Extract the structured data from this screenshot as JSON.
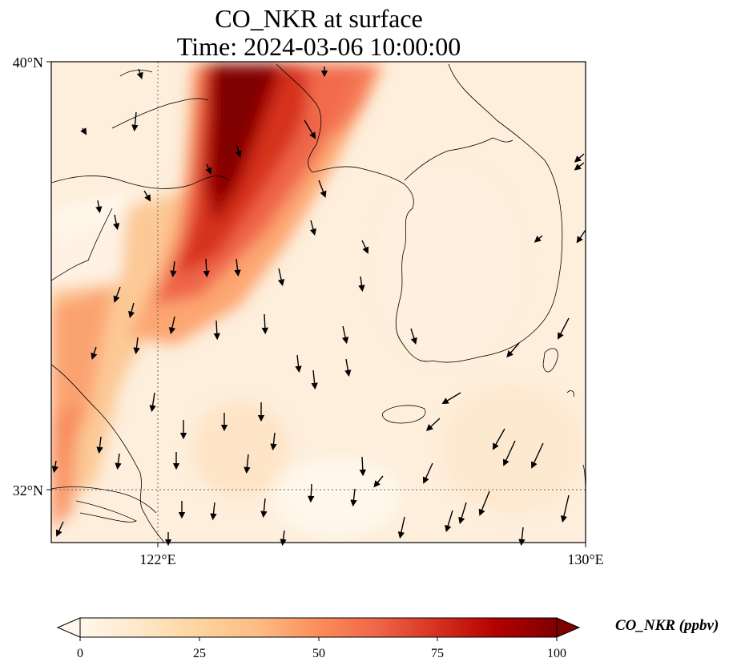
{
  "title": {
    "line1": "CO_NKR at surface",
    "line2": "Time: 2024-03-06 10:00:00"
  },
  "map": {
    "lat_range": [
      31,
      40
    ],
    "lon_range": [
      120,
      130
    ],
    "lat_ticks": [
      "40°N",
      "32°N"
    ],
    "lon_ticks": [
      "122°E",
      "130°E"
    ],
    "gridlines": "dotted"
  },
  "colorbar": {
    "label": "CO_NKR (ppbv)",
    "colormap": "OrRd",
    "ticks": [
      "0",
      "25",
      "50",
      "75",
      "100"
    ],
    "range": [
      0,
      100
    ],
    "extend": "both",
    "colors": [
      "#fff7ec",
      "#fee8c8",
      "#fdd49e",
      "#fdbb84",
      "#fc8d59",
      "#ef6548",
      "#d7301f",
      "#b30000",
      "#7f0000"
    ]
  },
  "plume_description_colors": {
    "core": "#7f0000",
    "mid": "#d7301f",
    "edge": "#fdbb84",
    "background": "#fdf0df"
  },
  "wind_vectors": "present"
}
